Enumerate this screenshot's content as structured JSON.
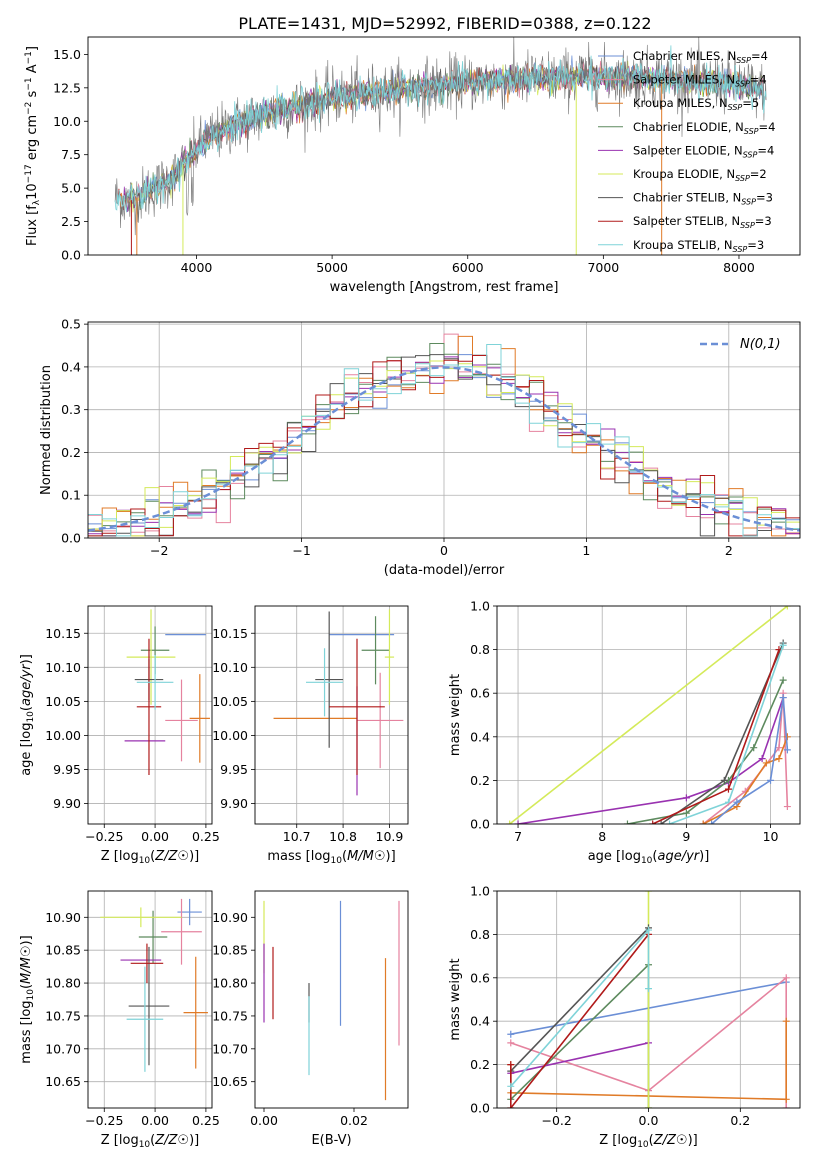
{
  "title": "PLATE=1431, MJD=52992, FIBERID=0388, z=0.122",
  "colors": {
    "chabrier_miles": "#6b8fd6",
    "salpeter_miles": "#e5839f",
    "kroupa_miles": "#e07b28",
    "chabrier_elodie": "#5d8a5e",
    "salpeter_elodie": "#9932b0",
    "kroupa_elodie": "#d4ea5a",
    "chabrier_stelib": "#555555",
    "salpeter_stelib": "#b01a1a",
    "kroupa_stelib": "#7fd3d8",
    "grid": "#b0b0b0",
    "normal_curve": "#6b8fd6"
  },
  "chart_data": [
    {
      "id": "spectrum",
      "type": "line",
      "xlabel": "wavelength [Angstrom, rest frame]",
      "ylabel": "Flux [f_λ10^-17 erg cm^-2 s^-1 A^-1]",
      "xlim": [
        3200,
        8450
      ],
      "ylim": [
        0,
        16.3
      ],
      "xticks": [
        4000,
        5000,
        6000,
        7000,
        8000
      ],
      "yticks": [
        0.0,
        2.5,
        5.0,
        7.5,
        10.0,
        12.5,
        15.0
      ],
      "grid": false,
      "legend_position": "right",
      "x_range_data": [
        3400,
        8200
      ],
      "continuum_knots": {
        "x": [
          3400,
          3500,
          3700,
          3850,
          3950,
          4100,
          4300,
          4600,
          5000,
          5500,
          6000,
          6500,
          7000,
          7500,
          8000,
          8200
        ],
        "y": [
          4.3,
          4.0,
          5.0,
          6.0,
          7.5,
          8.8,
          9.8,
          10.8,
          11.8,
          12.4,
          12.9,
          13.2,
          13.4,
          13.1,
          12.8,
          12.2
        ]
      },
      "legend": [
        {
          "key": "chabrier_miles",
          "label": "Chabrier MILES, N",
          "sub": "SSP",
          "tail": "=4"
        },
        {
          "key": "salpeter_miles",
          "label": "Salpeter MILES, N",
          "sub": "SSP",
          "tail": "=4"
        },
        {
          "key": "kroupa_miles",
          "label": "Kroupa MILES, N",
          "sub": "SSP",
          "tail": "=5"
        },
        {
          "key": "chabrier_elodie",
          "label": "Chabrier ELODIE, N",
          "sub": "SSP",
          "tail": "=4"
        },
        {
          "key": "salpeter_elodie",
          "label": "Salpeter ELODIE, N",
          "sub": "SSP",
          "tail": "=4"
        },
        {
          "key": "kroupa_elodie",
          "label": "Kroupa ELODIE, N",
          "sub": "SSP",
          "tail": "=2"
        },
        {
          "key": "chabrier_stelib",
          "label": "Chabrier STELIB, N",
          "sub": "SSP",
          "tail": "=3"
        },
        {
          "key": "salpeter_stelib",
          "label": "Salpeter STELIB, N",
          "sub": "SSP",
          "tail": "=3"
        },
        {
          "key": "kroupa_stelib",
          "label": "Kroupa STELIB, N",
          "sub": "SSP",
          "tail": "=3"
        }
      ]
    },
    {
      "id": "residuals",
      "type": "histogram",
      "xlabel": "(data-model)/error",
      "ylabel": "Normed distribution",
      "xlim": [
        -2.5,
        2.5
      ],
      "ylim": [
        0,
        0.505
      ],
      "xticks": [
        -2,
        -1,
        0,
        1,
        2
      ],
      "yticks": [
        0.0,
        0.1,
        0.2,
        0.3,
        0.4,
        0.5
      ],
      "grid": true,
      "legend_label": "N(0,1)",
      "legend_position": "top-right",
      "bin_width": 0.1,
      "bin_start": -2.5
    },
    {
      "id": "age_vs_Z",
      "type": "errorbar",
      "xlabel": "Z [log10(Z/Z☉)]",
      "ylabel": "age  [log10(age/yr)]",
      "xlim": [
        -0.33,
        0.28
      ],
      "ylim": [
        9.87,
        10.19
      ],
      "xticks": [
        -0.25,
        0.0,
        0.25
      ],
      "yticks": [
        9.9,
        9.95,
        10.0,
        10.05,
        10.1,
        10.15
      ],
      "grid": true,
      "points": [
        {
          "key": "chabrier_miles",
          "x": 0.15,
          "xerr": 0.1,
          "y": 10.148,
          "yerr": 0.0
        },
        {
          "key": "salpeter_miles",
          "x": 0.13,
          "xerr": 0.08,
          "y": 10.022,
          "yerr": 0.06
        },
        {
          "key": "kroupa_miles",
          "x": 0.22,
          "xerr": 0.05,
          "y": 10.025,
          "yerr": 0.065
        },
        {
          "key": "chabrier_elodie",
          "x": 0.0,
          "xerr": 0.07,
          "y": 10.125,
          "yerr": 0.035
        },
        {
          "key": "salpeter_elodie",
          "x": -0.05,
          "xerr": 0.1,
          "y": 9.992,
          "yerr": 0.0
        },
        {
          "key": "kroupa_elodie",
          "x": -0.02,
          "xerr": 0.12,
          "y": 10.115,
          "yerr": 0.07
        },
        {
          "key": "chabrier_stelib",
          "x": -0.03,
          "xerr": 0.07,
          "y": 10.082,
          "yerr": 0.03
        },
        {
          "key": "salpeter_stelib",
          "x": -0.03,
          "xerr": 0.06,
          "y": 10.042,
          "yerr": 0.1
        },
        {
          "key": "kroupa_stelib",
          "x": 0.0,
          "xerr": 0.09,
          "y": 10.078,
          "yerr": 0.04
        }
      ]
    },
    {
      "id": "age_vs_mass",
      "type": "errorbar",
      "xlabel": "mass [log10(M/M☉)]",
      "ylabel": "",
      "xlim": [
        10.61,
        10.94
      ],
      "ylim": [
        9.87,
        10.19
      ],
      "xticks": [
        10.7,
        10.8,
        10.9
      ],
      "yticks": [
        9.9,
        9.95,
        10.0,
        10.05,
        10.1,
        10.15
      ],
      "grid": true,
      "points": [
        {
          "key": "chabrier_miles",
          "x": 10.84,
          "xerr": 0.07,
          "y": 10.148,
          "yerr": 0.0
        },
        {
          "key": "salpeter_miles",
          "x": 10.88,
          "xerr": 0.05,
          "y": 10.022,
          "yerr": 0.07
        },
        {
          "key": "kroupa_miles",
          "x": 10.74,
          "xerr": 0.09,
          "y": 10.025,
          "yerr": 0.0
        },
        {
          "key": "chabrier_elodie",
          "x": 10.87,
          "xerr": 0.03,
          "y": 10.125,
          "yerr": 0.05
        },
        {
          "key": "salpeter_elodie",
          "x": 10.83,
          "xerr": 0.0,
          "y": 9.992,
          "yerr": 0.08
        },
        {
          "key": "kroupa_elodie",
          "x": 10.9,
          "xerr": 0.01,
          "y": 10.115,
          "yerr": 0.07
        },
        {
          "key": "chabrier_stelib",
          "x": 10.77,
          "xerr": 0.03,
          "y": 10.082,
          "yerr": 0.1
        },
        {
          "key": "salpeter_stelib",
          "x": 10.83,
          "xerr": 0.06,
          "y": 10.042,
          "yerr": 0.1
        },
        {
          "key": "kroupa_stelib",
          "x": 10.76,
          "xerr": 0.04,
          "y": 10.078,
          "yerr": 0.05
        }
      ]
    },
    {
      "id": "mass_weight_vs_age",
      "type": "line",
      "xlabel": "age  [log10(age/yr)]",
      "ylabel": "mass weight",
      "xlim": [
        6.75,
        10.35
      ],
      "ylim": [
        0,
        1.0
      ],
      "xticks": [
        7,
        8,
        9,
        10
      ],
      "yticks": [
        0.0,
        0.2,
        0.4,
        0.6,
        0.8,
        1.0
      ],
      "grid": true,
      "series": [
        {
          "key": "kroupa_elodie",
          "x": [
            6.9,
            10.2
          ],
          "y": [
            0.0,
            1.0
          ]
        },
        {
          "key": "salpeter_elodie",
          "x": [
            7.0,
            9.0,
            9.5,
            9.9,
            10.15
          ],
          "y": [
            0.0,
            0.12,
            0.19,
            0.3,
            0.58
          ]
        },
        {
          "key": "chabrier_elodie",
          "x": [
            8.3,
            9.0,
            9.5,
            9.8,
            10.15
          ],
          "y": [
            0.0,
            0.05,
            0.2,
            0.35,
            0.66
          ]
        },
        {
          "key": "chabrier_stelib",
          "x": [
            8.7,
            9.45,
            10.15
          ],
          "y": [
            0.0,
            0.2,
            0.83
          ]
        },
        {
          "key": "salpeter_stelib",
          "x": [
            8.6,
            9.5,
            10.1
          ],
          "y": [
            0.0,
            0.16,
            0.8
          ]
        },
        {
          "key": "kroupa_stelib",
          "x": [
            8.8,
            9.5,
            10.15
          ],
          "y": [
            0.0,
            0.1,
            0.82
          ]
        },
        {
          "key": "salpeter_miles",
          "x": [
            9.2,
            9.7,
            10.1,
            10.15,
            10.2
          ],
          "y": [
            0.0,
            0.15,
            0.35,
            0.6,
            0.08
          ]
        },
        {
          "key": "kroupa_miles",
          "x": [
            9.2,
            9.6,
            9.95,
            10.1,
            10.2
          ],
          "y": [
            0.0,
            0.08,
            0.28,
            0.3,
            0.4
          ]
        },
        {
          "key": "chabrier_miles",
          "x": [
            9.3,
            9.6,
            10.0,
            10.15,
            10.2
          ],
          "y": [
            0.0,
            0.1,
            0.2,
            0.58,
            0.34
          ]
        }
      ]
    },
    {
      "id": "mass_vs_Z",
      "type": "errorbar",
      "xlabel": "Z [log10(Z/Z☉)]",
      "ylabel": "mass [log10(M/M☉)]",
      "xlim": [
        -0.33,
        0.28
      ],
      "ylim": [
        10.61,
        10.94
      ],
      "xticks": [
        -0.25,
        0.0,
        0.25
      ],
      "yticks": [
        10.65,
        10.7,
        10.75,
        10.8,
        10.85,
        10.9
      ],
      "grid": true,
      "points": [
        {
          "key": "chabrier_miles",
          "x": 0.17,
          "xerr": 0.06,
          "y": 10.908,
          "yerr": 0.02
        },
        {
          "key": "salpeter_miles",
          "x": 0.13,
          "xerr": 0.1,
          "y": 10.878,
          "yerr": 0.05
        },
        {
          "key": "kroupa_miles",
          "x": 0.2,
          "xerr": 0.06,
          "y": 10.755,
          "yerr": 0.085
        },
        {
          "key": "chabrier_elodie",
          "x": -0.01,
          "xerr": 0.07,
          "y": 10.87,
          "yerr": 0.04
        },
        {
          "key": "salpeter_elodie",
          "x": -0.07,
          "xerr": 0.1,
          "y": 10.835,
          "yerr": 0.0
        },
        {
          "key": "kroupa_elodie",
          "x": -0.07,
          "xerr": 0.2,
          "y": 10.9,
          "yerr": 0.015
        },
        {
          "key": "chabrier_stelib",
          "x": -0.03,
          "xerr": 0.1,
          "y": 10.765,
          "yerr": 0.09
        },
        {
          "key": "salpeter_stelib",
          "x": -0.04,
          "xerr": 0.08,
          "y": 10.83,
          "yerr": 0.03
        },
        {
          "key": "kroupa_stelib",
          "x": -0.05,
          "xerr": 0.09,
          "y": 10.745,
          "yerr": 0.08
        }
      ]
    },
    {
      "id": "mass_vs_ebv",
      "type": "errorbar",
      "xlabel": "E(B-V)",
      "ylabel": "",
      "xlim": [
        -0.002,
        0.032
      ],
      "ylim": [
        10.61,
        10.94
      ],
      "xticks": [
        0.0,
        0.02
      ],
      "yticks": [
        10.65,
        10.7,
        10.75,
        10.8,
        10.85,
        10.9
      ],
      "grid": false,
      "points": [
        {
          "key": "kroupa_elodie",
          "x": 0.0,
          "xerr": 0.0,
          "y": 10.87,
          "yerr": 0.055
        },
        {
          "key": "salpeter_elodie",
          "x": 0.0,
          "xerr": 0.0,
          "y": 10.8,
          "yerr": 0.06
        },
        {
          "key": "salpeter_stelib",
          "x": 0.002,
          "xerr": 0.0,
          "y": 10.8,
          "yerr": 0.055
        },
        {
          "key": "chabrier_stelib",
          "x": 0.01,
          "xerr": 0.0,
          "y": 10.77,
          "yerr": 0.03
        },
        {
          "key": "kroupa_stelib",
          "x": 0.01,
          "xerr": 0.0,
          "y": 10.72,
          "yerr": 0.06
        },
        {
          "key": "chabrier_miles",
          "x": 0.017,
          "xerr": 0.0,
          "y": 10.83,
          "yerr": 0.095
        },
        {
          "key": "kroupa_miles",
          "x": 0.027,
          "xerr": 0.0,
          "y": 10.73,
          "yerr": 0.108
        },
        {
          "key": "salpeter_miles",
          "x": 0.03,
          "xerr": 0.0,
          "y": 10.815,
          "yerr": 0.11
        }
      ]
    },
    {
      "id": "mass_weight_vs_Z",
      "type": "line",
      "xlabel": "Z [log10(Z/Z☉)]",
      "ylabel": "mass weight",
      "xlim": [
        -0.33,
        0.33
      ],
      "ylim": [
        0,
        1.0
      ],
      "xticks": [
        -0.2,
        0.0,
        0.2
      ],
      "yticks": [
        0.0,
        0.2,
        0.4,
        0.6,
        0.8,
        1.0
      ],
      "grid": true,
      "series": [
        {
          "key": "chabrier_miles",
          "x": [
            -0.3,
            0.3
          ],
          "y": [
            0.34,
            0.58
          ]
        },
        {
          "key": "salpeter_miles",
          "x": [
            -0.3,
            0.0,
            0.3,
            0.3
          ],
          "y": [
            0.3,
            0.08,
            0.6,
            0.0
          ]
        },
        {
          "key": "kroupa_miles",
          "x": [
            -0.3,
            -0.3,
            0.3,
            0.3
          ],
          "y": [
            0.2,
            0.07,
            0.04,
            0.4
          ]
        },
        {
          "key": "chabrier_elodie",
          "x": [
            -0.3,
            0.0,
            0.0
          ],
          "y": [
            0.04,
            0.66,
            0.0
          ]
        },
        {
          "key": "salpeter_elodie",
          "x": [
            -0.3,
            0.0
          ],
          "y": [
            0.16,
            0.3
          ]
        },
        {
          "key": "kroupa_elodie",
          "x": [
            0.0,
            0.0
          ],
          "y": [
            0.0,
            1.0
          ]
        },
        {
          "key": "chabrier_stelib",
          "x": [
            -0.3,
            0.0
          ],
          "y": [
            0.17,
            0.83
          ]
        },
        {
          "key": "salpeter_stelib",
          "x": [
            -0.3,
            -0.3,
            0.0
          ],
          "y": [
            0.2,
            0.0,
            0.8
          ]
        },
        {
          "key": "kroupa_stelib",
          "x": [
            -0.3,
            0.0,
            0.0
          ],
          "y": [
            0.1,
            0.82,
            0.55
          ]
        }
      ]
    }
  ]
}
